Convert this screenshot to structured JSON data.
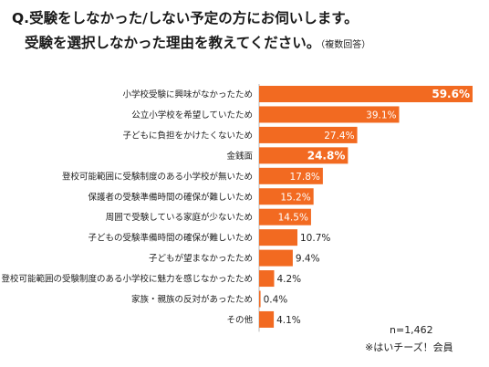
{
  "question": {
    "line1": "Q.受験をしなかった/しない予定の方にお伺いします。",
    "line2": "受験を選択しなかった理由を教えてください。",
    "note": "（複数回答）"
  },
  "footer": {
    "sample": "n=1,462",
    "source": "※はいチーズ！会員"
  },
  "colors": {
    "bar": "#f26a21",
    "label_inside": "#ffffff",
    "label_outside": "#222222"
  },
  "chart_data": {
    "type": "bar",
    "orientation": "horizontal",
    "unit": "%",
    "categories": [
      "小学校受験に興味がなかったため",
      "公立小学校を希望していたため",
      "子どもに負担をかけたくないため",
      "金銭面",
      "登校可能範囲に受験制度のある小学校が無いため",
      "保護者の受験準備時間の確保が難しいため",
      "周囲で受験している家庭が少ないため",
      "子どもの受験準備時間の確保が難しいため",
      "子どもが望まなかったため",
      "登校可能範囲の受験制度のある小学校に魅力を感じなかったため",
      "家族・親族の反対があったため",
      "その他"
    ],
    "values": [
      59.6,
      39.1,
      27.4,
      24.8,
      17.8,
      15.2,
      14.5,
      10.7,
      9.4,
      4.2,
      0.4,
      4.1
    ],
    "value_labels": [
      "59.6%",
      "39.1%",
      "27.4%",
      "24.8%",
      "17.8%",
      "15.2%",
      "14.5%",
      "10.7%",
      "9.4%",
      "4.2%",
      "0.4%",
      "4.1%"
    ],
    "bold_labels": [
      true,
      false,
      false,
      true,
      false,
      false,
      false,
      false,
      false,
      false,
      false,
      false
    ],
    "xlim": [
      0,
      59.6
    ],
    "grid": false,
    "legend": "none"
  }
}
